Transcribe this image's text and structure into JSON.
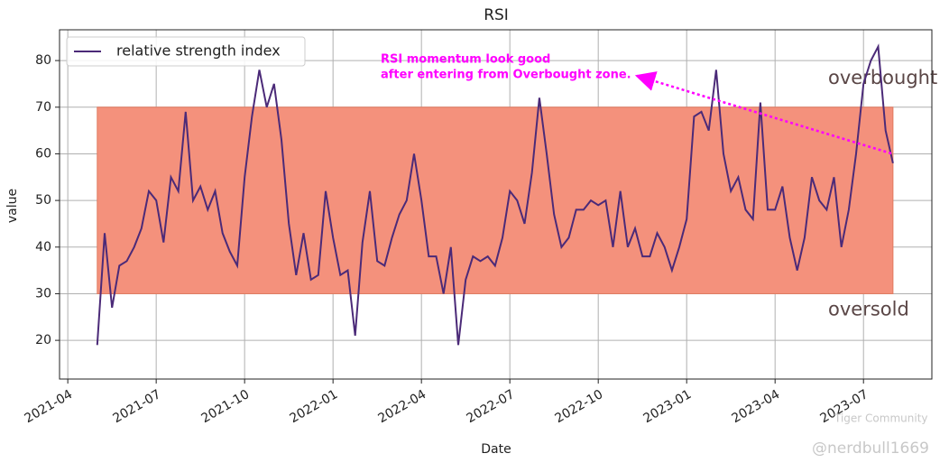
{
  "chart_data": {
    "type": "line",
    "title": "RSI",
    "xlabel": "Date",
    "ylabel": "value",
    "x": [
      1,
      1.25,
      1.5,
      1.75,
      2,
      2.25,
      2.5,
      2.75,
      3,
      3.25,
      3.5,
      3.75,
      4,
      4.25,
      4.5,
      4.75,
      5,
      5.25,
      5.5,
      5.75,
      6,
      6.25,
      6.5,
      6.75,
      7,
      7.25,
      7.5,
      7.75,
      8,
      8.25,
      8.5,
      8.75,
      9,
      9.25,
      9.5,
      9.75,
      10,
      10.25,
      10.5,
      10.75,
      11,
      11.25,
      11.5,
      11.75,
      12,
      12.25,
      12.5,
      12.75,
      13,
      13.25,
      13.5,
      13.75,
      14,
      14.25,
      14.5,
      14.75,
      15,
      15.25,
      15.5,
      15.75,
      16,
      16.25,
      16.5,
      16.75,
      17,
      17.25,
      17.5,
      17.75,
      18,
      18.25,
      18.5,
      18.75,
      19,
      19.25,
      19.5,
      19.75,
      20,
      20.25,
      20.5,
      20.75,
      21,
      21.25,
      21.5,
      21.75,
      22,
      22.25,
      22.5,
      22.75,
      23,
      23.25,
      23.5,
      23.75,
      24,
      24.25,
      24.5,
      24.75,
      25,
      25.25,
      25.5,
      25.75,
      26,
      26.25,
      26.5,
      26.75,
      27,
      27.25,
      27.5,
      27.75,
      28
    ],
    "series": [
      {
        "name": "relative strength index",
        "color": "#4b2a78",
        "values": [
          19,
          43,
          27,
          36,
          37,
          40,
          44,
          52,
          50,
          41,
          55,
          52,
          69,
          50,
          53,
          48,
          52,
          43,
          39,
          36,
          55,
          68,
          78,
          70,
          75,
          63,
          45,
          34,
          43,
          33,
          34,
          52,
          42,
          34,
          35,
          21,
          41,
          52,
          37,
          36,
          42,
          47,
          50,
          60,
          50,
          38,
          38,
          30,
          40,
          19,
          33,
          38,
          37,
          38,
          36,
          42,
          52,
          50,
          45,
          56,
          72,
          60,
          47,
          40,
          42,
          48,
          48,
          50,
          49,
          50,
          40,
          52,
          40,
          44,
          38,
          38,
          43,
          40,
          35,
          40,
          46,
          68,
          69,
          65,
          78,
          60,
          52,
          55,
          48,
          46,
          71,
          48,
          48,
          53,
          42,
          35,
          42,
          55,
          50,
          48,
          55,
          40,
          48,
          60,
          75,
          80,
          83,
          65,
          58
        ]
      }
    ],
    "bands": [
      {
        "label": "overbought",
        "value": 70
      },
      {
        "label": "oversold",
        "value": 30
      }
    ],
    "band_color": "#f4917c",
    "annotation": [
      "RSI momentum look good",
      "after entering from Overbought zone."
    ],
    "annotation_color": "#ff00ff",
    "xlim": [
      -0.28,
      29.32
    ],
    "xticks": [
      {
        "value": 0,
        "label": "2021-04"
      },
      {
        "value": 3,
        "label": "2021-07"
      },
      {
        "value": 6,
        "label": "2021-10"
      },
      {
        "value": 9,
        "label": "2022-01"
      },
      {
        "value": 12,
        "label": "2022-04"
      },
      {
        "value": 15,
        "label": "2022-07"
      },
      {
        "value": 18,
        "label": "2022-10"
      },
      {
        "value": 21,
        "label": "2023-01"
      },
      {
        "value": 24,
        "label": "2023-04"
      },
      {
        "value": 27,
        "label": "2023-07"
      }
    ],
    "ylim": [
      11.7,
      86.6
    ],
    "yticks": [
      20,
      30,
      40,
      50,
      60,
      70,
      80
    ],
    "grid": true,
    "legend": "upper left",
    "watermark": [
      "Tiger Community",
      "@nerdbull1669"
    ]
  }
}
